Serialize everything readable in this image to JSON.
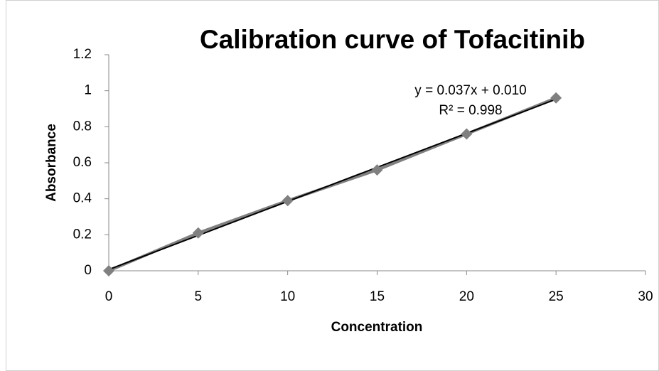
{
  "chart_data": {
    "type": "scatter-line",
    "title": "Calibration curve of Tofacitinib",
    "x_label": "Concentration",
    "y_label": "Absorbance",
    "x": [
      0,
      5,
      10,
      15,
      20,
      25
    ],
    "series": [
      {
        "name": "Absorbance",
        "color": "#808080",
        "values": [
          0,
          0.21,
          0.39,
          0.56,
          0.76,
          0.96
        ]
      }
    ],
    "trendline": {
      "color": "#000000",
      "equation": "y = 0.037x + 0.010",
      "r_squared": "R² = 0.998"
    },
    "xlim": [
      0,
      30
    ],
    "xticks": [
      0,
      5,
      10,
      15,
      20,
      25,
      30
    ],
    "ylim": [
      0,
      1.2
    ],
    "yticks": [
      0,
      0.2,
      0.4,
      0.6,
      0.8,
      1,
      1.2
    ],
    "grid": false
  }
}
